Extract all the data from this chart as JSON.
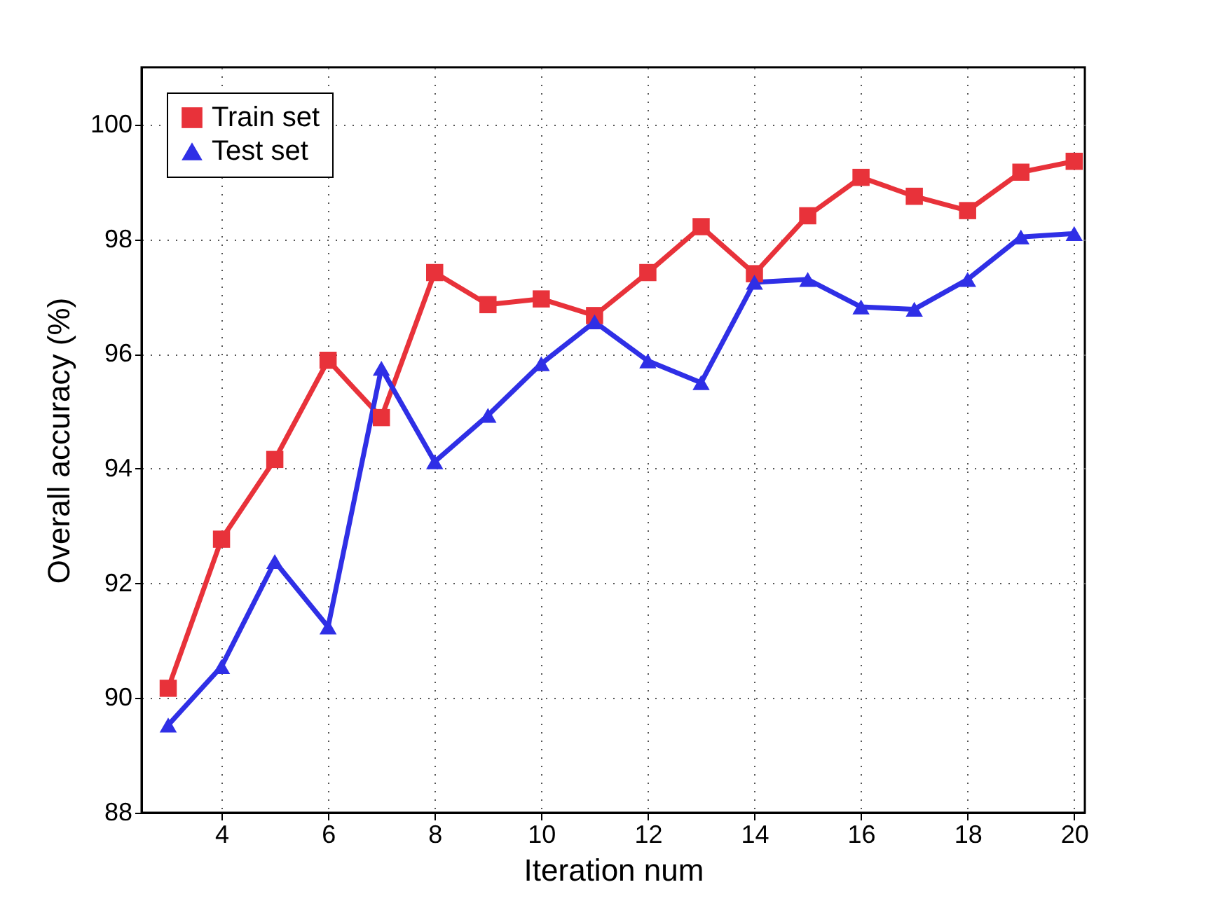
{
  "chart_data": {
    "type": "line",
    "xlabel": "Iteration num",
    "ylabel": "Overall accuracy (%)",
    "x": [
      3,
      4,
      5,
      6,
      7,
      8,
      9,
      10,
      11,
      12,
      13,
      14,
      15,
      16,
      17,
      18,
      19,
      20
    ],
    "series": [
      {
        "name": "Train set",
        "color": "#e8323a",
        "marker": "square",
        "values": [
          90.17,
          92.77,
          94.16,
          95.89,
          94.89,
          97.42,
          96.86,
          96.96,
          96.67,
          97.42,
          98.22,
          97.4,
          98.41,
          99.08,
          98.75,
          98.5,
          99.17,
          99.36
        ]
      },
      {
        "name": "Test set",
        "color": "#2f2fe6",
        "marker": "triangle",
        "values": [
          89.53,
          90.55,
          92.38,
          91.24,
          95.75,
          94.12,
          94.93,
          95.83,
          96.56,
          95.88,
          95.5,
          97.25,
          97.3,
          96.82,
          96.78,
          97.3,
          98.04,
          98.1
        ]
      }
    ],
    "xlim": [
      2.5,
      20.2
    ],
    "xticks": [
      4,
      6,
      8,
      10,
      12,
      14,
      16,
      18,
      20
    ],
    "ylim": [
      88,
      101
    ],
    "yticks": [
      88,
      90,
      92,
      94,
      96,
      98,
      100
    ],
    "grid": true,
    "legend": "top left",
    "line_style": "solid"
  }
}
